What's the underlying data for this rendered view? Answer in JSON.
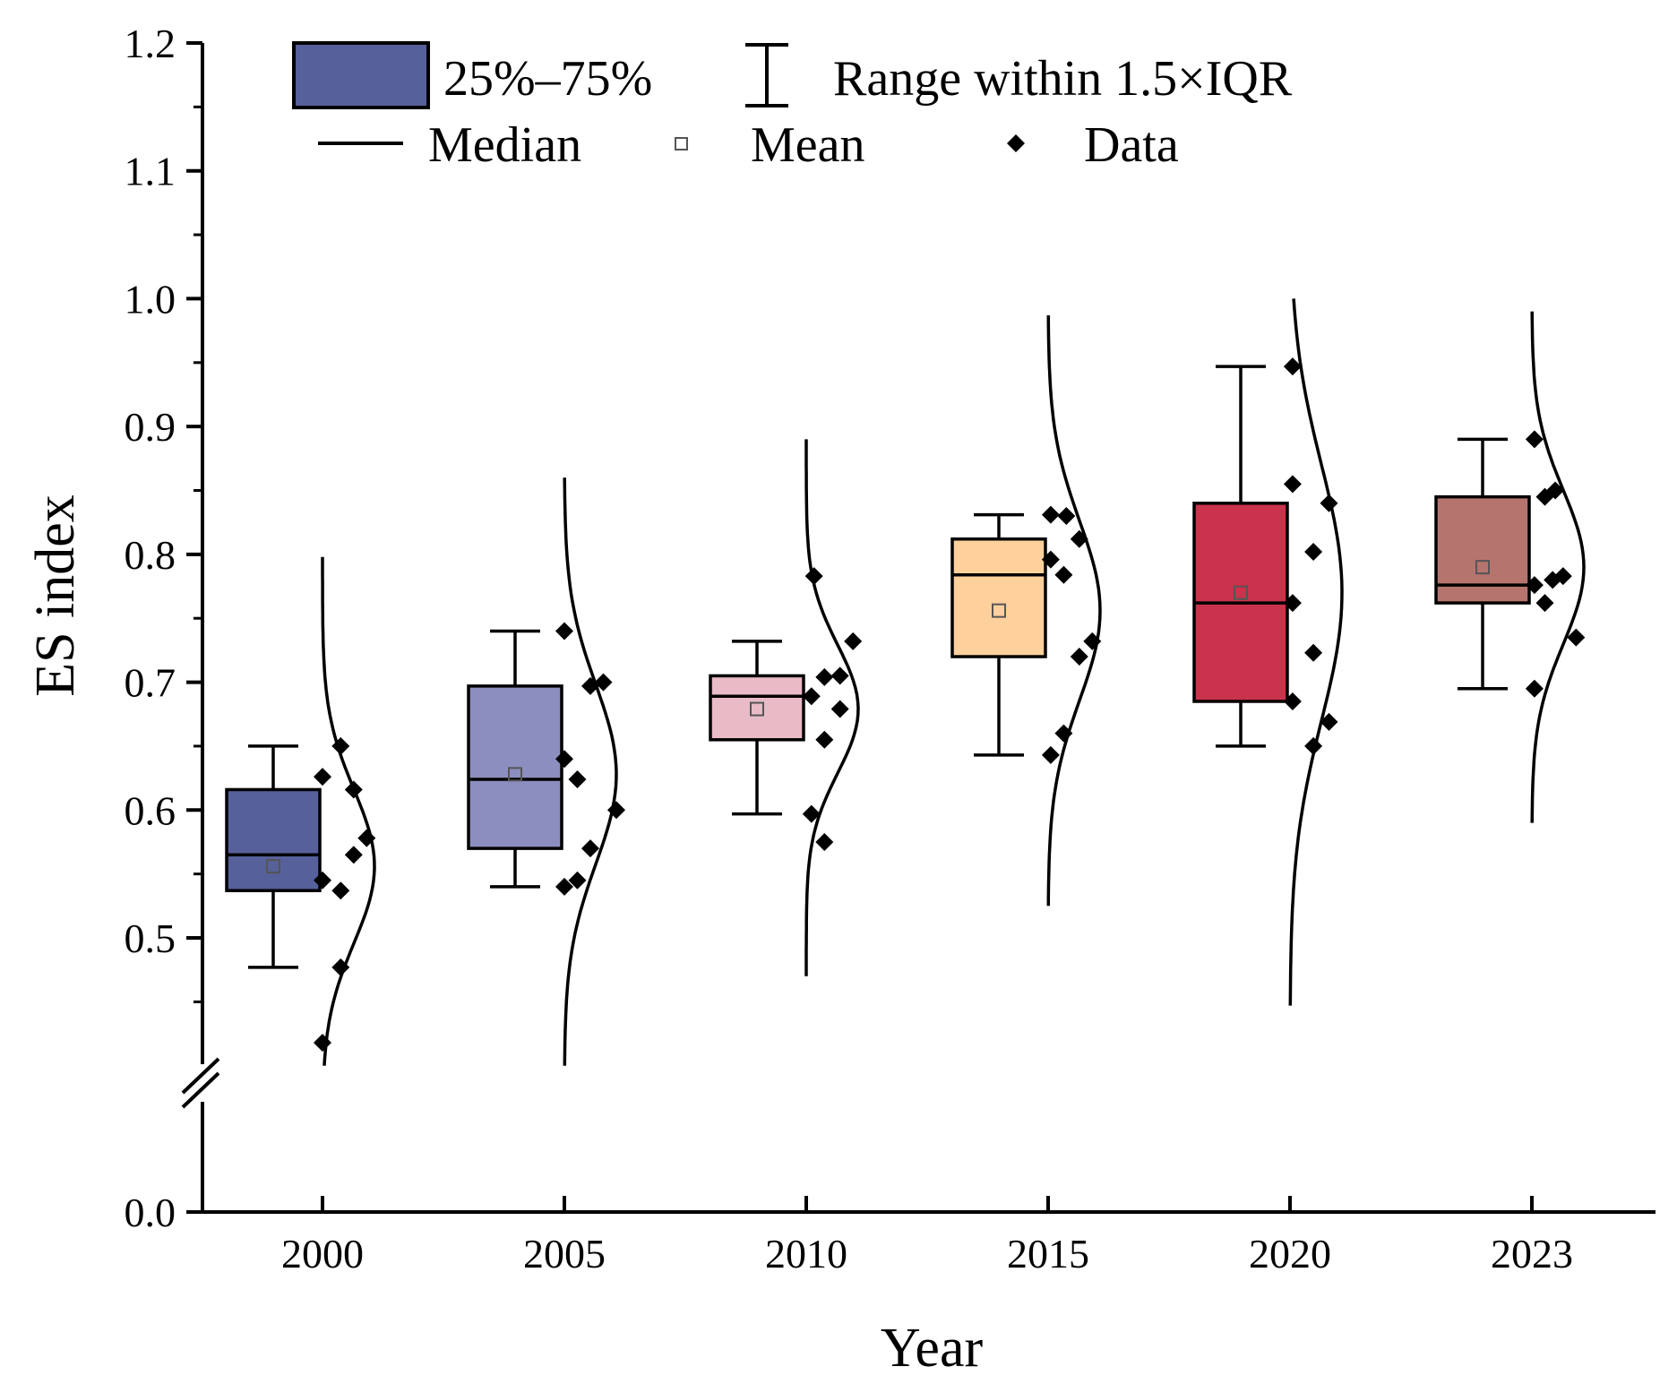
{
  "chart_data": {
    "type": "boxplot",
    "xlabel": "Year",
    "ylabel": "ES index",
    "categories": [
      "2000",
      "2005",
      "2010",
      "2015",
      "2020",
      "2023"
    ],
    "yticks": [
      "0.0",
      "0.5",
      "0.6",
      "0.7",
      "0.8",
      "0.9",
      "1.0",
      "1.1",
      "1.2"
    ],
    "ylim": [
      0.0,
      1.2
    ],
    "axis_break": [
      0.4,
      0.42
    ],
    "legend": {
      "box": "25%–75%",
      "whisker": "Range within 1.5×IQR",
      "median": "Median",
      "mean": "Mean",
      "data": "Data"
    },
    "groups": [
      {
        "label": "2000",
        "color": "#56609a",
        "q1": 0.537,
        "median": 0.565,
        "q3": 0.616,
        "mean": 0.556,
        "whisker_low": 0.477,
        "whisker_high": 0.65,
        "points": [
          {
            "dx": 0.0,
            "v": 0.626
          },
          {
            "dx": 0.35,
            "v": 0.65
          },
          {
            "dx": 0.6,
            "v": 0.616
          },
          {
            "dx": 0.85,
            "v": 0.578
          },
          {
            "dx": 0.6,
            "v": 0.565
          },
          {
            "dx": 0.35,
            "v": 0.537
          },
          {
            "dx": 0.0,
            "v": 0.545
          },
          {
            "dx": 0.35,
            "v": 0.477
          },
          {
            "dx": 0.0,
            "v": 0.418
          }
        ],
        "curve": {
          "mu": 0.556,
          "sigma": 0.06,
          "lo": 0.4,
          "hi": 0.798
        }
      },
      {
        "label": "2005",
        "color": "#8c8ebf",
        "q1": 0.57,
        "median": 0.624,
        "q3": 0.697,
        "mean": 0.628,
        "whisker_low": 0.54,
        "whisker_high": 0.74,
        "points": [
          {
            "dx": 0.0,
            "v": 0.74
          },
          {
            "dx": 0.5,
            "v": 0.697
          },
          {
            "dx": 0.75,
            "v": 0.7
          },
          {
            "dx": 0.0,
            "v": 0.64
          },
          {
            "dx": 0.25,
            "v": 0.624
          },
          {
            "dx": 1.0,
            "v": 0.6
          },
          {
            "dx": 0.5,
            "v": 0.57
          },
          {
            "dx": 0.25,
            "v": 0.545
          },
          {
            "dx": 0.0,
            "v": 0.54
          }
        ],
        "curve": {
          "mu": 0.628,
          "sigma": 0.07,
          "lo": 0.4,
          "hi": 0.86
        }
      },
      {
        "label": "2010",
        "color": "#e8bbc6",
        "q1": 0.655,
        "median": 0.689,
        "q3": 0.705,
        "mean": 0.679,
        "whisker_low": 0.597,
        "whisker_high": 0.732,
        "points": [
          {
            "dx": 0.15,
            "v": 0.783
          },
          {
            "dx": 0.9,
            "v": 0.732
          },
          {
            "dx": 0.35,
            "v": 0.704
          },
          {
            "dx": 0.65,
            "v": 0.705
          },
          {
            "dx": 0.1,
            "v": 0.689
          },
          {
            "dx": 0.65,
            "v": 0.679
          },
          {
            "dx": 0.35,
            "v": 0.655
          },
          {
            "dx": 0.1,
            "v": 0.597
          },
          {
            "dx": 0.35,
            "v": 0.575
          }
        ],
        "curve": {
          "mu": 0.679,
          "sigma": 0.05,
          "lo": 0.47,
          "hi": 0.89
        }
      },
      {
        "label": "2015",
        "color": "#fdd09c",
        "q1": 0.72,
        "median": 0.784,
        "q3": 0.812,
        "mean": 0.756,
        "whisker_low": 0.643,
        "whisker_high": 0.831,
        "points": [
          {
            "dx": 0.05,
            "v": 0.831
          },
          {
            "dx": 0.35,
            "v": 0.83
          },
          {
            "dx": 0.6,
            "v": 0.812
          },
          {
            "dx": 0.05,
            "v": 0.796
          },
          {
            "dx": 0.3,
            "v": 0.784
          },
          {
            "dx": 0.85,
            "v": 0.732
          },
          {
            "dx": 0.6,
            "v": 0.72
          },
          {
            "dx": 0.3,
            "v": 0.66
          },
          {
            "dx": 0.05,
            "v": 0.643
          }
        ],
        "curve": {
          "mu": 0.756,
          "sigma": 0.07,
          "lo": 0.525,
          "hi": 0.987
        }
      },
      {
        "label": "2020",
        "color": "#cb324c",
        "q1": 0.685,
        "median": 0.762,
        "q3": 0.84,
        "mean": 0.77,
        "whisker_low": 0.65,
        "whisker_high": 0.947,
        "points": [
          {
            "dx": 0.05,
            "v": 0.947
          },
          {
            "dx": 0.05,
            "v": 0.855
          },
          {
            "dx": 0.75,
            "v": 0.84
          },
          {
            "dx": 0.45,
            "v": 0.802
          },
          {
            "dx": 0.05,
            "v": 0.762
          },
          {
            "dx": 0.45,
            "v": 0.723
          },
          {
            "dx": 0.05,
            "v": 0.685
          },
          {
            "dx": 0.75,
            "v": 0.669
          },
          {
            "dx": 0.45,
            "v": 0.65
          }
        ],
        "curve": {
          "mu": 0.77,
          "sigma": 0.1,
          "lo": 0.447,
          "hi": 1.0
        }
      },
      {
        "label": "2023",
        "color": "#b6746e",
        "q1": 0.762,
        "median": 0.776,
        "q3": 0.845,
        "mean": 0.79,
        "whisker_low": 0.695,
        "whisker_high": 0.89,
        "points": [
          {
            "dx": 0.05,
            "v": 0.89
          },
          {
            "dx": 0.25,
            "v": 0.845
          },
          {
            "dx": 0.45,
            "v": 0.85
          },
          {
            "dx": 0.6,
            "v": 0.783
          },
          {
            "dx": 0.05,
            "v": 0.776
          },
          {
            "dx": 0.4,
            "v": 0.78
          },
          {
            "dx": 0.25,
            "v": 0.762
          },
          {
            "dx": 0.85,
            "v": 0.735
          },
          {
            "dx": 0.05,
            "v": 0.695
          }
        ],
        "curve": {
          "mu": 0.79,
          "sigma": 0.06,
          "lo": 0.59,
          "hi": 0.99
        }
      }
    ]
  }
}
